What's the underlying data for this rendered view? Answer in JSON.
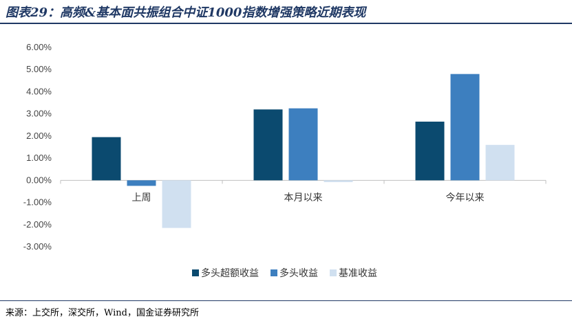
{
  "header": {
    "title": "图表29：高频&基本面共振组合中证1000指数增强策略近期表现"
  },
  "footer": {
    "source": "来源：上交所，深交所，Wind，国金证券研究所"
  },
  "chart_data": {
    "type": "bar",
    "title": "图表29：高频&基本面共振组合中证1000指数增强策略近期表现",
    "categories": [
      "上周",
      "本月以来",
      "今年以来"
    ],
    "series": [
      {
        "name": "多头超额收益",
        "color": "#0b4a6f",
        "values": [
          1.95,
          3.2,
          2.65
        ]
      },
      {
        "name": "多头收益",
        "color": "#3d7fbf",
        "values": [
          -0.25,
          3.25,
          4.8
        ]
      },
      {
        "name": "基准收益",
        "color": "#d0e0f0",
        "values": [
          -2.15,
          -0.08,
          1.6
        ]
      }
    ],
    "ylim": [
      -3,
      6
    ],
    "yticks": [
      "-3.00%",
      "-2.00%",
      "-1.00%",
      "0.00%",
      "1.00%",
      "2.00%",
      "3.00%",
      "4.00%",
      "5.00%",
      "6.00%"
    ],
    "xlabel": "",
    "ylabel": "",
    "legend": "bottom"
  }
}
